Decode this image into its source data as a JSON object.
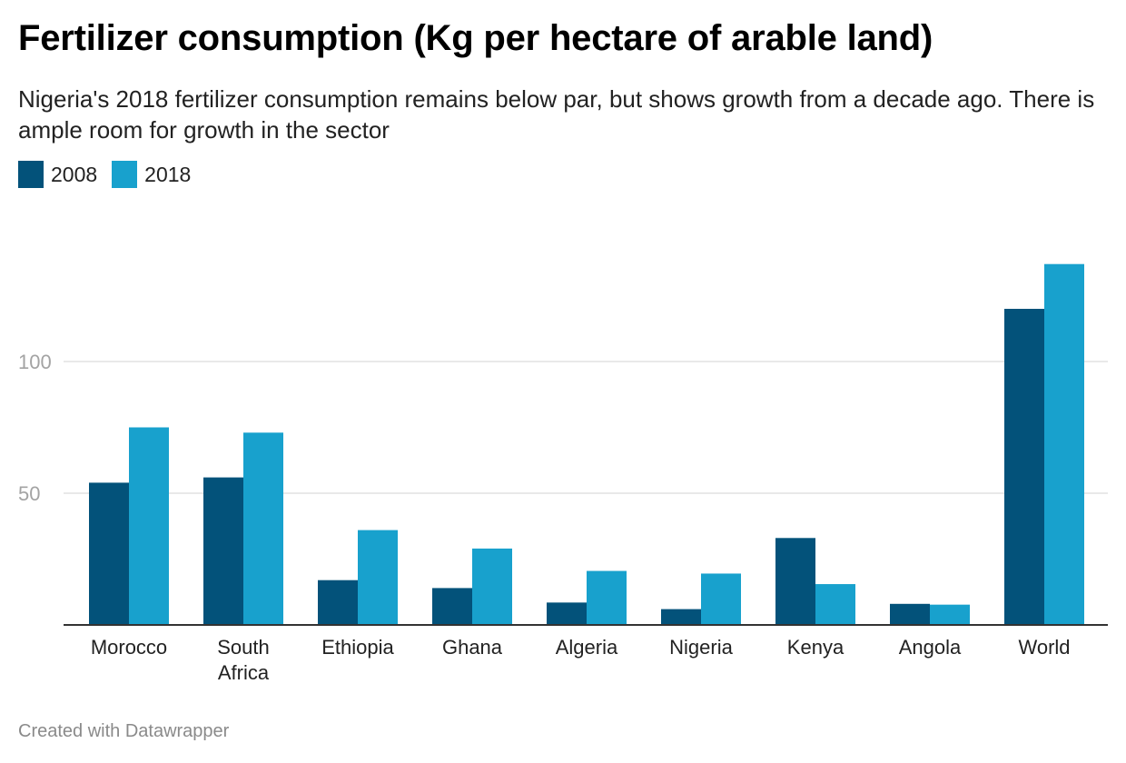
{
  "header": {
    "title": "Fertilizer consumption (Kg per hectare of arable land)",
    "subtitle": "Nigeria's 2018 fertilizer consumption remains below par, but shows growth from a decade ago. There is ample room for growth in the sector"
  },
  "footer": {
    "credit": "Created with Datawrapper"
  },
  "chart_data": {
    "type": "bar",
    "title": "Fertilizer consumption (Kg per hectare of arable land)",
    "xlabel": "",
    "ylabel": "",
    "categories": [
      [
        "Morocco"
      ],
      [
        "South",
        "Africa"
      ],
      [
        "Ethiopia"
      ],
      [
        "Ghana"
      ],
      [
        "Algeria"
      ],
      [
        "Nigeria"
      ],
      [
        "Kenya"
      ],
      [
        "Angola"
      ],
      [
        "World"
      ]
    ],
    "series": [
      {
        "name": "2008",
        "color": "#03527a",
        "values": [
          54,
          56,
          17,
          14,
          8.5,
          6,
          33,
          8,
          120
        ]
      },
      {
        "name": "2018",
        "color": "#18a1cd",
        "values": [
          75,
          73,
          36,
          29,
          20.5,
          19.5,
          15.5,
          7.7,
          137
        ]
      }
    ],
    "yticks": [
      50,
      100
    ],
    "ylim": [
      0,
      150
    ],
    "grid": true,
    "legend_position": "top-left"
  }
}
